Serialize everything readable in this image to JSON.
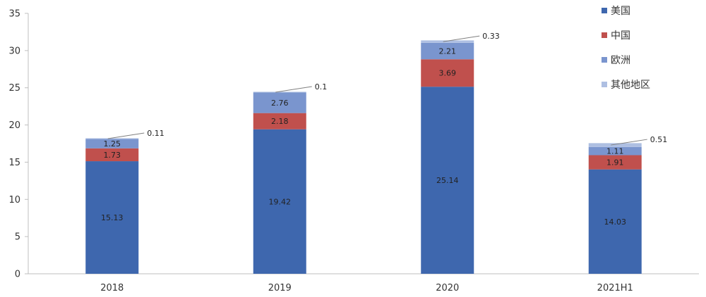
{
  "chart_data": {
    "type": "bar",
    "stacked": true,
    "title": "",
    "xlabel": "",
    "ylabel": "",
    "categories": [
      "2018",
      "2019",
      "2020",
      "2021H1"
    ],
    "ylim": [
      0,
      35
    ],
    "yticks": [
      0,
      5,
      10,
      15,
      20,
      25,
      30,
      35
    ],
    "grid": false,
    "legend_position": "top-right",
    "series": [
      {
        "name": "美国",
        "values": [
          15.13,
          19.42,
          25.14,
          14.03
        ],
        "color": "#3E67AE"
      },
      {
        "name": "中国",
        "values": [
          1.73,
          2.18,
          3.69,
          1.91
        ],
        "color": "#C0504D"
      },
      {
        "name": "欧洲",
        "values": [
          1.25,
          2.76,
          2.21,
          1.11
        ],
        "color": "#7A95CE"
      },
      {
        "name": "其他地区",
        "values": [
          0.11,
          0.1,
          0.33,
          0.51
        ],
        "color": "#AEBFE2"
      }
    ]
  }
}
